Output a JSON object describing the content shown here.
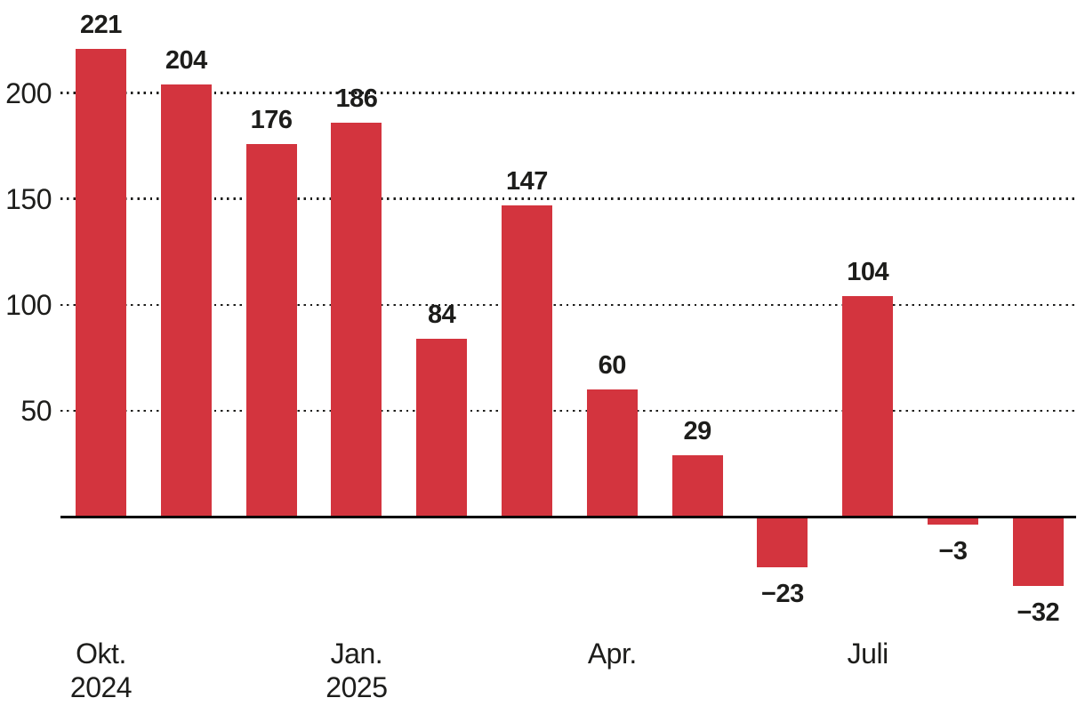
{
  "chart_data": {
    "type": "bar",
    "title": "",
    "xlabel": "",
    "ylabel": "",
    "values": [
      221,
      204,
      176,
      186,
      84,
      147,
      60,
      29,
      -23,
      104,
      -3,
      -32
    ],
    "value_labels": [
      "221",
      "204",
      "176",
      "186",
      "84",
      "147",
      "60",
      "29",
      "−23",
      "104",
      "−3",
      "−32"
    ],
    "y_ticks": [
      50,
      100,
      150,
      200
    ],
    "y_tick_labels": [
      "50",
      "100",
      "150",
      "200"
    ],
    "x_tick_labels": [
      {
        "bar_index": 0,
        "lines": [
          "Okt.",
          "2024"
        ]
      },
      {
        "bar_index": 3,
        "lines": [
          "Jan.",
          "2025"
        ]
      },
      {
        "bar_index": 6,
        "lines": [
          "Apr."
        ]
      },
      {
        "bar_index": 9,
        "lines": [
          "Juli"
        ]
      }
    ],
    "ylim": [
      -45,
      232
    ],
    "grid": "horizontal-dotted",
    "legend": "none",
    "colors": {
      "bar": "#d3343e",
      "text": "#1d1d1b",
      "axis": "#000000",
      "background": "#ffffff"
    }
  }
}
